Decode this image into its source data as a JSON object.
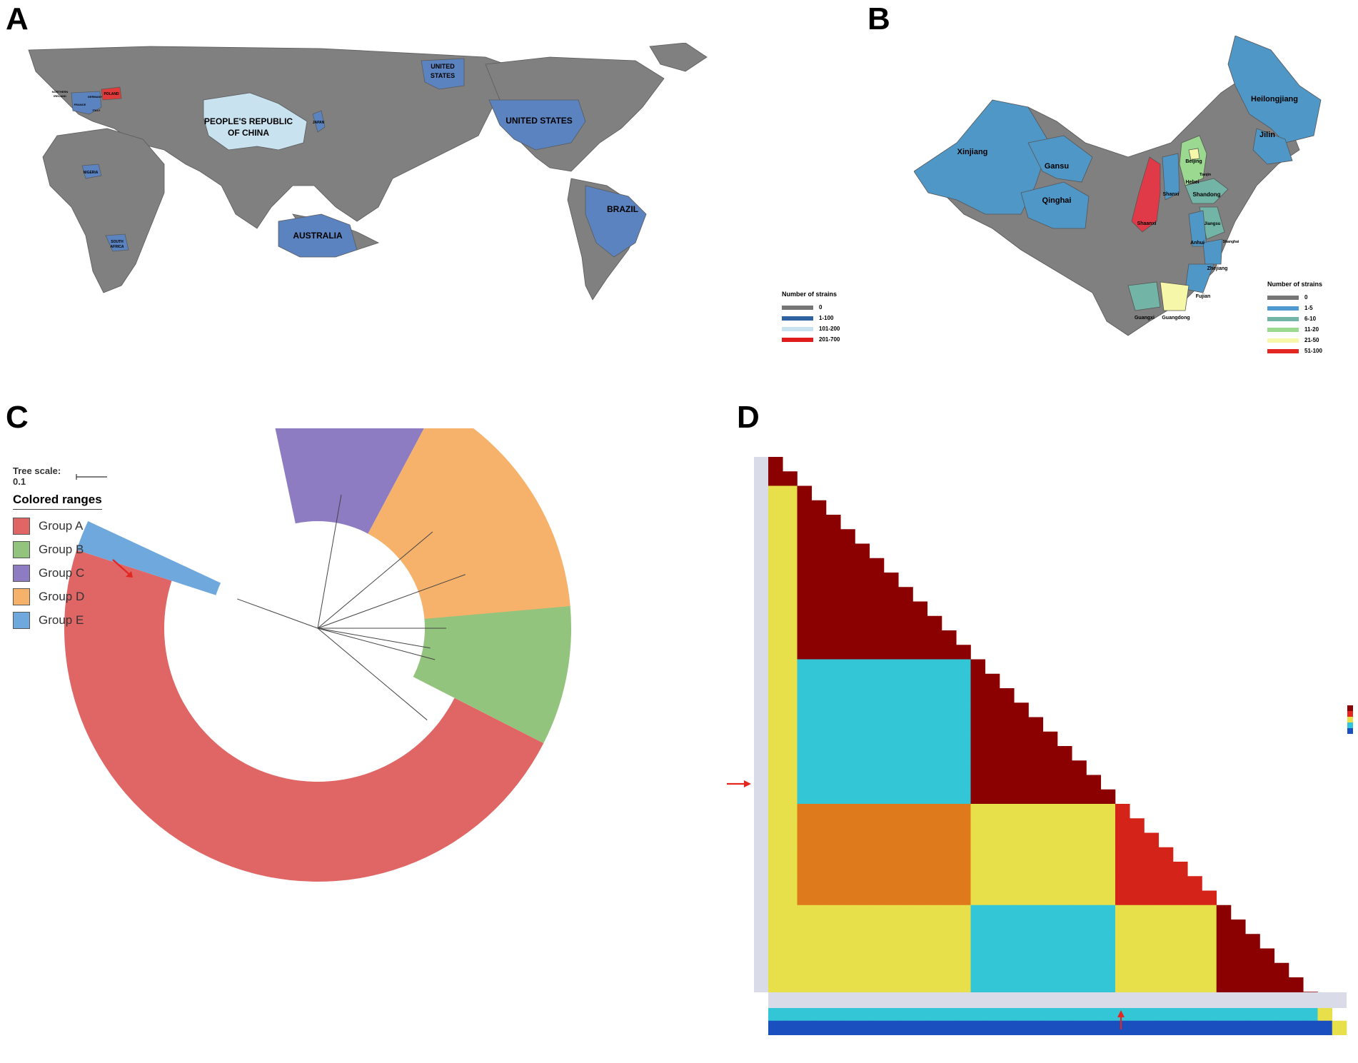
{
  "panels": {
    "a": "A",
    "b": "B",
    "c": "C",
    "d": "D"
  },
  "world_map": {
    "labels": {
      "china": "PEOPLE'S REPUBLIC",
      "china2": "OF CHINA",
      "us_main": "UNITED STATES",
      "us_alaska": "UNITED",
      "us_alaska2": "STATES",
      "brazil": "BRAZIL",
      "australia": "AUSTRALIA",
      "nigeria": "NIGERIA",
      "south_africa": "SOUTH",
      "south_africa2": "AFRICA",
      "japan": "JAPAN",
      "poland": "POLAND",
      "germany": "GERMANY",
      "france": "FRANCE",
      "italy": "ITALY",
      "n_ireland": "NORTHERN",
      "n_ireland2": "IRELAND"
    },
    "legend": {
      "title": "Number of strains",
      "items": [
        {
          "label": "0",
          "color": "#757575"
        },
        {
          "label": "1-100",
          "color": "#2e62a0"
        },
        {
          "label": "101-200",
          "color": "#c8e2f0"
        },
        {
          "label": "201-700",
          "color": "#e11b1b"
        }
      ]
    },
    "colors": {
      "land": "#808080",
      "low": "#5a83c0",
      "mid": "#c8e2f0",
      "high": "#e03a3a"
    }
  },
  "china_map": {
    "labels": {
      "xinjiang": "Xinjiang",
      "gansu": "Gansu",
      "qinghai": "Qinghai",
      "heilongjiang": "Heilongjiang",
      "jilin": "Jilin",
      "beijing": "Beijing",
      "tianjin": "Tianjin",
      "hebei": "Hebei",
      "shanxi": "Shanxi",
      "shandong": "Shandong",
      "shaanxi": "Shaanxi",
      "jiangsu": "Jiangsu",
      "shanghai": "Shanghai",
      "anhui": "Anhui",
      "zhejiang": "Zhejiang",
      "fujian": "Fujian",
      "guangxi": "Guangxi",
      "guangdong": "Guangdong"
    },
    "legend": {
      "title": "Number of strains",
      "items": [
        {
          "label": "0",
          "color": "#757575"
        },
        {
          "label": "1-5",
          "color": "#4f9ad0"
        },
        {
          "label": "6-10",
          "color": "#72b5a6"
        },
        {
          "label": "11-20",
          "color": "#9bd890"
        },
        {
          "label": "21-50",
          "color": "#f6f7a8"
        },
        {
          "label": "51-100",
          "color": "#e3261f"
        }
      ]
    }
  },
  "tree": {
    "scale_label": "Tree scale: 0.1",
    "legend_title": "Colored ranges",
    "groups": [
      {
        "name": "Group A",
        "color": "#e06666"
      },
      {
        "name": "Group B",
        "color": "#93c47d"
      },
      {
        "name": "Group C",
        "color": "#8e7cc3"
      },
      {
        "name": "Group D",
        "color": "#f6b26b"
      },
      {
        "name": "Group E",
        "color": "#6fa8dc"
      }
    ]
  },
  "heatmap": {
    "colors": {
      "dark": "#8b0000",
      "red": "#d42318",
      "orange": "#de7a1b",
      "yellow": "#e8e04a",
      "cyan": "#33c6d6",
      "blue": "#1a4fbf"
    }
  },
  "arrows": {
    "color": "#e3261f"
  }
}
